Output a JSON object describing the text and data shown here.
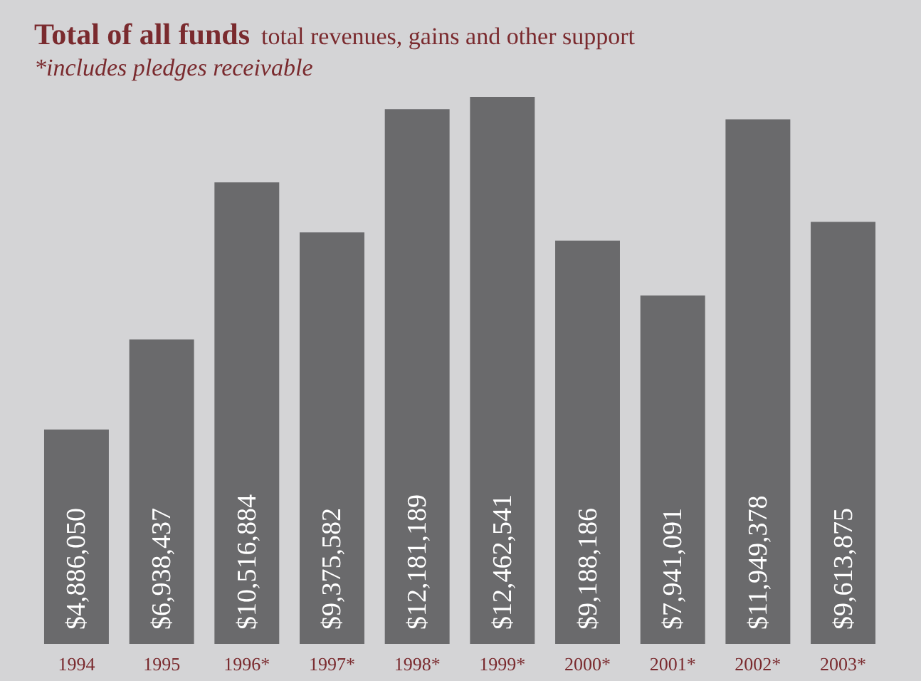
{
  "chart_data": {
    "type": "bar",
    "title": "Total of all funds",
    "subtitle": "total revenues, gains and other support",
    "annotations": [
      "*includes pledges receivable"
    ],
    "categories": [
      "1994",
      "1995",
      "1996*",
      "1997*",
      "1998*",
      "1999*",
      "2000*",
      "2001*",
      "2002*",
      "2003*"
    ],
    "values": [
      4886050,
      6938437,
      10516884,
      9375582,
      12181189,
      12462541,
      9188186,
      7941091,
      11949378,
      9613875
    ],
    "value_labels": [
      "$4,886,050",
      "$6,938,437",
      "$10,516,884",
      "$9,375,582",
      "$12,181,189",
      "$12,462,541",
      "$9,188,186",
      "$7,941,091",
      "$11,949,378",
      "$9,613,875"
    ],
    "color": "#6a6a6c"
  }
}
